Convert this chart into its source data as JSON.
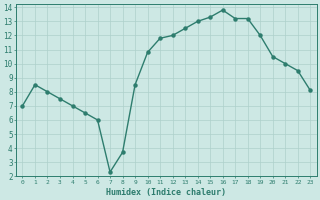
{
  "x": [
    0,
    1,
    2,
    3,
    4,
    5,
    6,
    7,
    8,
    9,
    10,
    11,
    12,
    13,
    14,
    15,
    16,
    17,
    18,
    19,
    20,
    21,
    22,
    23
  ],
  "y": [
    7.0,
    8.5,
    8.0,
    7.5,
    7.0,
    6.5,
    6.0,
    2.3,
    3.7,
    8.5,
    10.8,
    11.8,
    12.0,
    12.5,
    13.0,
    13.3,
    13.8,
    13.2,
    13.2,
    12.0,
    10.5,
    10.0,
    9.5,
    8.1
  ],
  "xlabel": "Humidex (Indice chaleur)",
  "line_color": "#2e7d6e",
  "marker_color": "#2e7d6e",
  "bg_color": "#cde8e4",
  "grid_color": "#aed0cb",
  "tick_label_color": "#2e7d6e",
  "xlim": [
    -0.5,
    23.5
  ],
  "ylim": [
    2,
    14.2
  ],
  "yticks": [
    2,
    3,
    4,
    5,
    6,
    7,
    8,
    9,
    10,
    11,
    12,
    13,
    14
  ],
  "xticks": [
    0,
    1,
    2,
    3,
    4,
    5,
    6,
    7,
    8,
    9,
    10,
    11,
    12,
    13,
    14,
    15,
    16,
    17,
    18,
    19,
    20,
    21,
    22,
    23
  ]
}
